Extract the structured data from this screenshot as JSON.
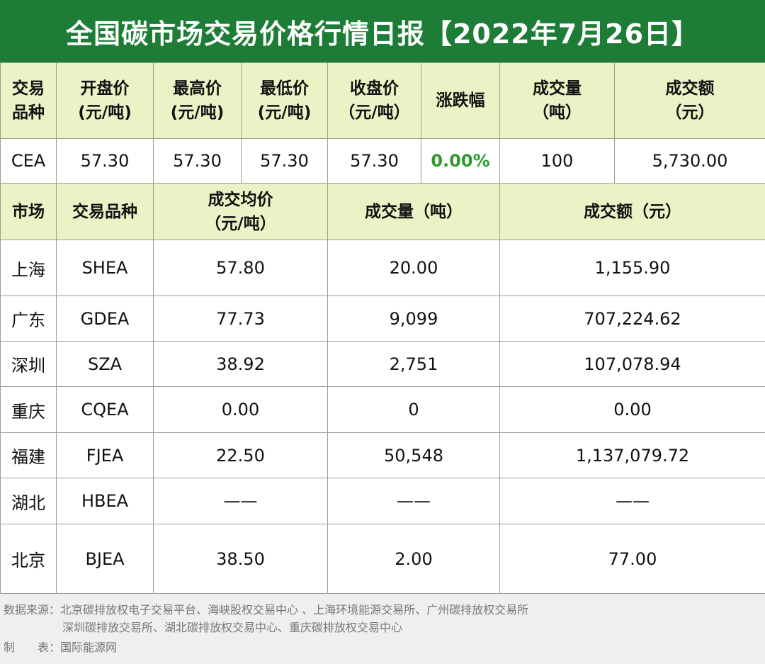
{
  "title": "全国碳市场交易价格行情日报【2022年7月26日】",
  "national": {
    "headers": [
      [
        "交易",
        "品种"
      ],
      [
        "开盘价",
        "(元/吨)"
      ],
      [
        "最高价",
        "(元/吨)"
      ],
      [
        "最低价",
        "(元/吨)"
      ],
      [
        "收盘价",
        "（元/吨）"
      ],
      [
        "涨跌幅"
      ],
      [
        "成交量",
        "（吨）"
      ],
      [
        "成交额",
        "（元）"
      ]
    ],
    "row": {
      "product": "CEA",
      "open": "57.30",
      "high": "57.30",
      "low": "57.30",
      "close": "57.30",
      "change": "0.00%",
      "volume": "100",
      "amount": "5,730.00"
    }
  },
  "regional": {
    "headers": {
      "market": "市场",
      "product": "交易品种",
      "avg_price_1": "成交均价",
      "avg_price_2": "（元/吨）",
      "volume": "成交量（吨）",
      "amount": "成交额（元）"
    },
    "rows": [
      {
        "market": "上海",
        "product": "SHEA",
        "avg_price": "57.80",
        "volume": "20.00",
        "amount": "1,155.90"
      },
      {
        "market": "广东",
        "product": "GDEA",
        "avg_price": "77.73",
        "volume": "9,099",
        "amount": "707,224.62"
      },
      {
        "market": "深圳",
        "product": "SZA",
        "avg_price": "38.92",
        "volume": "2,751",
        "amount": "107,078.94"
      },
      {
        "market": "重庆",
        "product": "CQEA",
        "avg_price": "0.00",
        "volume": "0",
        "amount": "0.00"
      },
      {
        "market": "福建",
        "product": "FJEA",
        "avg_price": "22.50",
        "volume": "50,548",
        "amount": "1,137,079.72"
      },
      {
        "market": "湖北",
        "product": "HBEA",
        "avg_price": "——",
        "volume": "——",
        "amount": "——"
      },
      {
        "market": "北京",
        "product": "BJEA",
        "avg_price": "38.50",
        "volume": "2.00",
        "amount": "77.00"
      }
    ]
  },
  "footer": {
    "source_line1": "数据来源：北京碳排放权电子交易平台、海峡股权交易中心 、上海环境能源交易所、广州碳排放权交易所",
    "source_line2": "深圳碳排放交易所、湖北碳排放权交易中心、重庆碳排放权交易中心",
    "maker_label": "制　　表：",
    "maker_value": "国际能源网"
  },
  "colors": {
    "title_bg": "#1d7c35",
    "header_bg": "#eaf3c6",
    "change_text": "#2e9a2e",
    "footer_bg": "#efefef"
  }
}
